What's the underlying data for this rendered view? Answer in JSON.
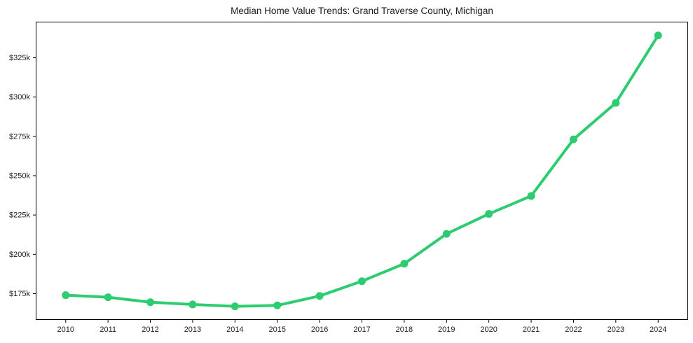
{
  "figure": {
    "background": "#ffffff"
  },
  "chart_data": {
    "type": "line",
    "title": "Median Home Value Trends: Grand Traverse County, Michigan",
    "xlabel": "",
    "ylabel": "",
    "grid": false,
    "legend_position": "none",
    "marker": "circle",
    "x": [
      2010,
      2011,
      2012,
      2013,
      2014,
      2015,
      2016,
      2017,
      2018,
      2019,
      2020,
      2021,
      2022,
      2023,
      2024
    ],
    "x_tick_labels": [
      "2010",
      "2011",
      "2012",
      "2013",
      "2014",
      "2015",
      "2016",
      "2017",
      "2018",
      "2019",
      "2020",
      "2021",
      "2022",
      "2023",
      "2024"
    ],
    "series": [
      {
        "name": "median-home-value",
        "color": "#2ecc71",
        "values": [
          174000,
          172700,
          169500,
          168100,
          166900,
          167500,
          173500,
          182900,
          194000,
          213000,
          225700,
          237100,
          273100,
          296300,
          339200
        ]
      }
    ],
    "ylim": [
      158500,
      347700
    ],
    "yticks": [
      {
        "value": 175000,
        "label": "$175k"
      },
      {
        "value": 200000,
        "label": "$200k"
      },
      {
        "value": 225000,
        "label": "$225k"
      },
      {
        "value": 250000,
        "label": "$250k"
      },
      {
        "value": 275000,
        "label": "$275k"
      },
      {
        "value": 300000,
        "label": "$300k"
      },
      {
        "value": 325000,
        "label": "$325k"
      }
    ],
    "axis_color": "#000000",
    "tick_label_color": "#1c1c1c"
  }
}
